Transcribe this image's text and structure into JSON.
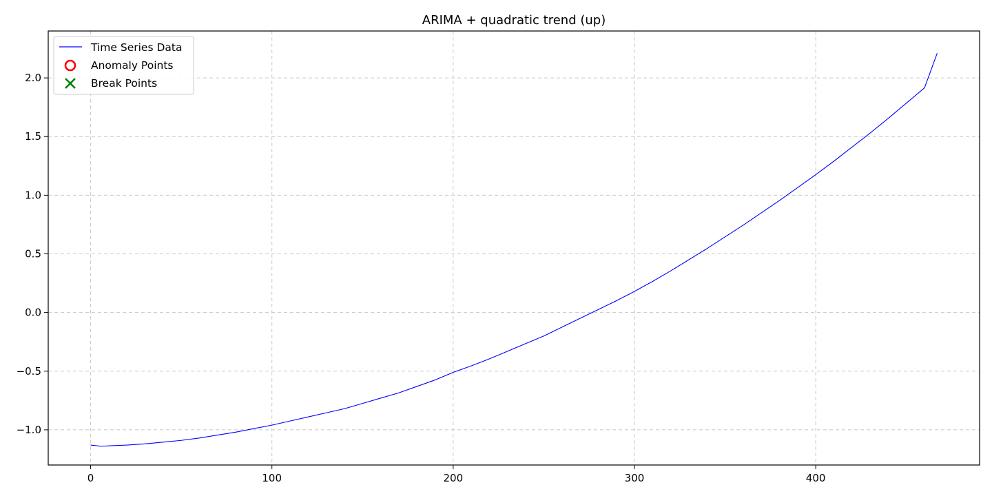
{
  "chart_data": {
    "type": "line",
    "title": "ARIMA + quadratic trend (up)",
    "xlabel": "",
    "ylabel": "",
    "xlim": [
      -23.4,
      490.4
    ],
    "ylim": [
      -1.3,
      2.4
    ],
    "xticks": [
      0,
      100,
      200,
      300,
      400
    ],
    "yticks": [
      -1.0,
      -0.5,
      0.0,
      0.5,
      1.0,
      1.5,
      2.0
    ],
    "xtick_labels": [
      "0",
      "100",
      "200",
      "300",
      "400"
    ],
    "ytick_labels": [
      "−1.0",
      "−0.5",
      "0.0",
      "0.5",
      "1.0",
      "1.5",
      "2.0"
    ],
    "grid": true,
    "legend_position": "top-left",
    "legend": [
      {
        "label": "Time Series Data",
        "marker": "line",
        "color": "#0000ff"
      },
      {
        "label": "Anomaly Points",
        "marker": "circle",
        "color": "#ff0000"
      },
      {
        "label": "Break Points",
        "marker": "x",
        "color": "#008000"
      }
    ],
    "series": [
      {
        "name": "Time Series Data",
        "color": "#0000ff",
        "x": [
          0,
          6,
          12,
          20,
          30,
          40,
          50,
          60,
          70,
          80,
          90,
          100,
          110,
          120,
          130,
          140,
          150,
          160,
          170,
          180,
          190,
          200,
          210,
          220,
          230,
          240,
          250,
          260,
          270,
          280,
          290,
          300,
          310,
          320,
          330,
          340,
          350,
          360,
          370,
          380,
          390,
          400,
          410,
          420,
          430,
          440,
          450,
          460,
          467
        ],
        "y": [
          -1.13,
          -1.14,
          -1.135,
          -1.13,
          -1.12,
          -1.105,
          -1.09,
          -1.07,
          -1.045,
          -1.02,
          -0.99,
          -0.96,
          -0.925,
          -0.89,
          -0.855,
          -0.82,
          -0.775,
          -0.73,
          -0.685,
          -0.63,
          -0.575,
          -0.51,
          -0.455,
          -0.395,
          -0.33,
          -0.265,
          -0.2,
          -0.125,
          -0.05,
          0.025,
          0.1,
          0.18,
          0.265,
          0.355,
          0.45,
          0.545,
          0.645,
          0.745,
          0.85,
          0.955,
          1.065,
          1.175,
          1.29,
          1.41,
          1.53,
          1.655,
          1.785,
          1.915,
          2.21
        ]
      }
    ],
    "anomaly_points": [],
    "break_points": []
  }
}
